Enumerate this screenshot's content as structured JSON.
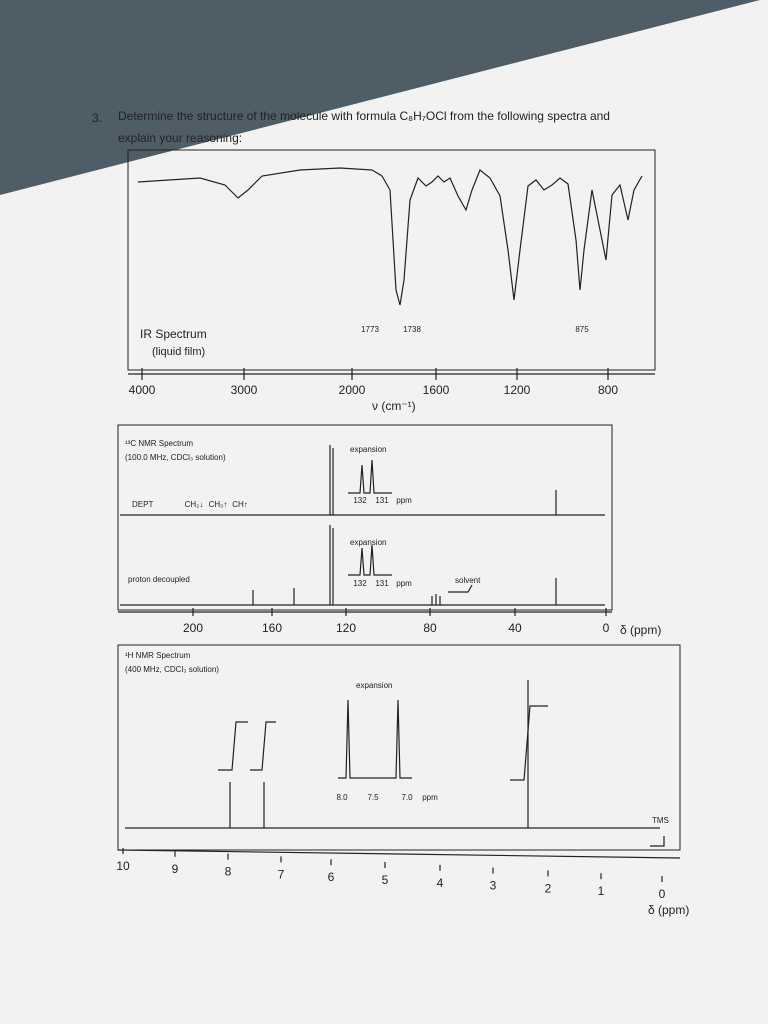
{
  "question": {
    "number": "3.",
    "line1": "Determine the structure of the molecule with formula C₈H₇OCl from the following spectra and",
    "line2": "explain your reasoning:"
  },
  "ir_spectrum": {
    "title": "IR Spectrum",
    "subtitle": "(liquid film)",
    "peak_labels": [
      "1773",
      "1738",
      "875"
    ],
    "axis_labels": [
      "4000",
      "3000",
      "2000",
      "1600",
      "1200",
      "800"
    ],
    "axis_title": "ν (cm⁻¹)"
  },
  "c13_nmr": {
    "title": "¹³C NMR Spectrum",
    "subtitle": "(100.0 MHz, CDCl₃ solution)",
    "dept_label": "DEPT",
    "dept_legend": [
      "CH₂↓",
      "CH₃↑",
      "CH↑"
    ],
    "dept_expansion": "expansion",
    "dept_expansion_ticks": [
      "132",
      "131",
      "ppm"
    ],
    "decoupled_label": "proton decoupled",
    "decoupled_expansion": "expansion",
    "decoupled_expansion_ticks": [
      "132",
      "131",
      "ppm"
    ],
    "solvent_label": "solvent",
    "axis_labels": [
      "200",
      "160",
      "120",
      "80",
      "40",
      "0"
    ],
    "axis_unit": "δ (ppm)"
  },
  "h1_nmr": {
    "title": "¹H NMR Spectrum",
    "subtitle": "(400 MHz, CDCl₃ solution)",
    "expansion_label": "expansion",
    "expansion_ticks": [
      "8.0",
      "7.5",
      "7.0",
      "ppm"
    ],
    "tms_label": "TMS",
    "axis_labels": [
      "10",
      "9",
      "8",
      "7",
      "6",
      "5",
      "4",
      "3",
      "2",
      "1",
      "0"
    ],
    "axis_unit": "δ (ppm)"
  }
}
